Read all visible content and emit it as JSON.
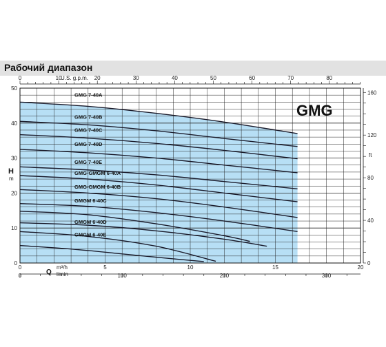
{
  "header": {
    "title": "Рабочий диапазон"
  },
  "chart_data": {
    "type": "line",
    "model_label": "GMG",
    "ylabel": "H",
    "ylabel_unit": "m",
    "ylim": [
      0,
      50
    ],
    "yticks": [
      0,
      10,
      20,
      30,
      40,
      50
    ],
    "right_axis_unit": "ft",
    "right_ticks": [
      0,
      40,
      80,
      120,
      160
    ],
    "xlabel": "Q",
    "x_unit_primary": "m³/h",
    "x_unit_secondary": "l/min",
    "xlim": [
      0,
      20
    ],
    "xticks_m3h": [
      0,
      5,
      10,
      15,
      20
    ],
    "xticks_lmin": [
      0,
      100,
      200,
      300
    ],
    "top_axis_unit": "U.S. g.p.m.",
    "top_ticks_gpm": [
      0,
      10,
      20,
      30,
      40,
      50,
      60,
      70,
      80
    ],
    "operating_range": {
      "x_max_m3h": 16.3
    },
    "series": [
      {
        "name": "GMG 7-40A",
        "x": [
          0,
          4,
          8,
          12,
          16.3
        ],
        "y": [
          46,
          44.8,
          42.8,
          40.3,
          37
        ]
      },
      {
        "name": "GMG 7-40B",
        "x": [
          0,
          4,
          8,
          12,
          16.3
        ],
        "y": [
          40.5,
          39.5,
          37.8,
          35.6,
          33.3
        ]
      },
      {
        "name": "GMG 7-40C",
        "x": [
          0,
          4,
          8,
          12,
          16.3
        ],
        "y": [
          36.7,
          35.7,
          34.2,
          32.2,
          29.8
        ]
      },
      {
        "name": "GMG 7-40D",
        "x": [
          0,
          4,
          8,
          12,
          16.3
        ],
        "y": [
          32.5,
          31.5,
          30.0,
          28.0,
          25.8
        ]
      },
      {
        "name": "GMG 7-40E",
        "x": [
          0,
          4,
          8,
          12,
          16.3
        ],
        "y": [
          27.5,
          26.6,
          25.2,
          23.3,
          21.2
        ]
      },
      {
        "name": "GMG-GMGM 6-40A",
        "x": [
          0,
          4,
          8,
          12,
          16.3
        ],
        "y": [
          25.0,
          24.0,
          22.3,
          20.0,
          17.5
        ]
      },
      {
        "name": "GMG-GMGM 6-40B",
        "x": [
          0,
          4,
          8,
          12,
          16.3
        ],
        "y": [
          21.0,
          20.0,
          18.4,
          16.0,
          13.0
        ]
      },
      {
        "name": "GMGM 6-40C",
        "x": [
          0,
          4,
          8,
          12,
          16.3
        ],
        "y": [
          17.0,
          16.2,
          14.4,
          12.0,
          9.0
        ]
      },
      {
        "name": "GMGM 6-40D",
        "x": [
          0,
          4,
          8,
          12,
          14.5
        ],
        "y": [
          11.5,
          10.8,
          9.2,
          6.8,
          4.8
        ]
      },
      {
        "name": "GMGM 6-40E",
        "x": [
          0,
          4,
          8,
          11.5
        ],
        "y": [
          9.0,
          7.6,
          4.8,
          0.5
        ]
      }
    ],
    "extra_curves": [
      {
        "x": [
          0,
          4,
          8,
          12,
          13.5
        ],
        "y": [
          14.8,
          13.8,
          11.2,
          7.8,
          6.2
        ]
      },
      {
        "x": [
          0,
          3,
          6,
          9,
          10.8
        ],
        "y": [
          5.0,
          4.0,
          2.6,
          1.2,
          0.4
        ]
      }
    ],
    "grid": true
  }
}
